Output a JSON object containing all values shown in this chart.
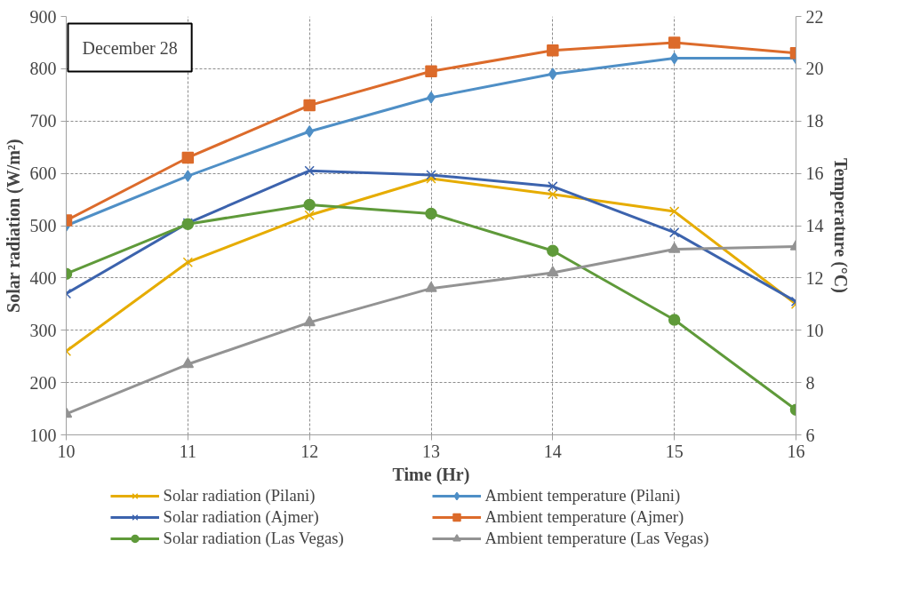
{
  "chart_data": {
    "type": "line",
    "xlabel": "Time (Hr)",
    "ylabel": "Solar radiation (W/m²)",
    "y2label": "Temperature (°C)",
    "annotations": [
      "December 28"
    ],
    "x": [
      10,
      11,
      12,
      13,
      14,
      15,
      16
    ],
    "xlim": [
      10,
      16
    ],
    "xticks": [
      10,
      11,
      12,
      13,
      14,
      15,
      16
    ],
    "ylim": [
      100,
      900
    ],
    "yticks": [
      100,
      200,
      300,
      400,
      500,
      600,
      700,
      800,
      900
    ],
    "y2lim": [
      6,
      22
    ],
    "y2ticks": [
      6,
      8,
      10,
      12,
      14,
      16,
      18,
      20,
      22
    ],
    "grid": true,
    "legend": "bottom",
    "line_style": "solid",
    "series": [
      {
        "name": "Solar radiation (Pilani)",
        "color": "#e6ac00",
        "marker": "cross",
        "values": [
          260,
          430,
          520,
          590,
          560,
          527,
          350
        ]
      },
      {
        "name": "Solar radiation (Ajmer)",
        "color": "#3c63ad",
        "marker": "cross",
        "values": [
          370,
          505,
          605,
          597,
          575,
          487,
          355
        ]
      },
      {
        "name": "Solar radiation (Las Vegas)",
        "color": "#5f9a3a",
        "marker": "circle",
        "values": [
          408,
          503,
          540,
          523,
          452,
          320,
          148
        ]
      },
      {
        "name": "Ambient temperature (Pilani)",
        "color": "#4f8fc6",
        "marker": "diamond",
        "axis": "y2",
        "values": [
          14.0,
          15.9,
          17.6,
          18.9,
          19.8,
          20.4,
          20.4
        ]
      },
      {
        "name": "Ambient temperature (Ajmer)",
        "color": "#dc6b2b",
        "marker": "square",
        "axis": "y2",
        "values": [
          14.2,
          16.6,
          18.6,
          19.9,
          20.7,
          21.0,
          20.6
        ]
      },
      {
        "name": "Ambient temperature (Las Vegas)",
        "color": "#939393",
        "marker": "triangle",
        "axis": "y2",
        "values": [
          6.8,
          8.7,
          10.3,
          11.6,
          12.2,
          13.1,
          13.2
        ]
      }
    ]
  }
}
